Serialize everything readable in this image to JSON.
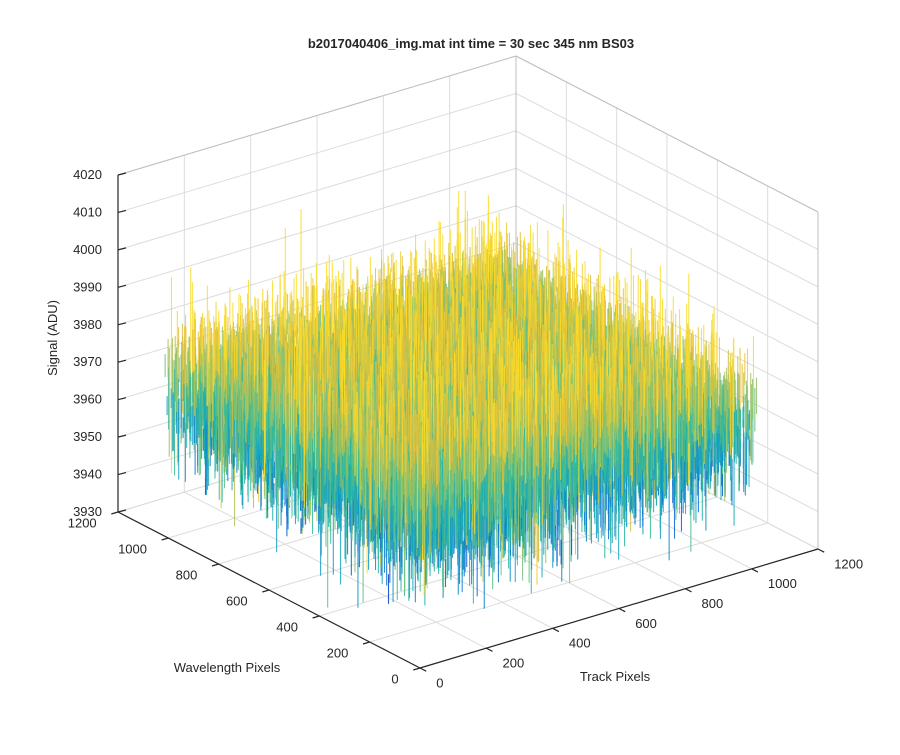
{
  "chart_data": {
    "type": "surface",
    "title": "b2017040406_img.mat int time = 30 sec  345 nm BS03",
    "xlabel": "Track Pixels",
    "ylabel": "Wavelength Pixels",
    "zlabel": "Signal (ADU)",
    "xlim": [
      0,
      1200
    ],
    "ylim": [
      0,
      1200
    ],
    "zlim": [
      3930,
      4020
    ],
    "xticks": [
      "0",
      "200",
      "400",
      "600",
      "800",
      "1000",
      "1200"
    ],
    "yticks": [
      "0",
      "200",
      "400",
      "600",
      "800",
      "1000",
      "1200"
    ],
    "zticks": [
      "3930",
      "3940",
      "3950",
      "3960",
      "3970",
      "3980",
      "3990",
      "4000",
      "4010",
      "4020"
    ],
    "data_extent": {
      "x": [
        0,
        1024
      ],
      "y": [
        0,
        1024
      ]
    },
    "signal_mean": 3968,
    "signal_range": [
      3930,
      4020
    ],
    "grid": true,
    "colormap": "parula",
    "colors": {
      "low": "#0072bd",
      "mid": "#21b3b0",
      "high": "#e6c235",
      "axis": "#262626",
      "grid": "#dcdcdc"
    }
  }
}
